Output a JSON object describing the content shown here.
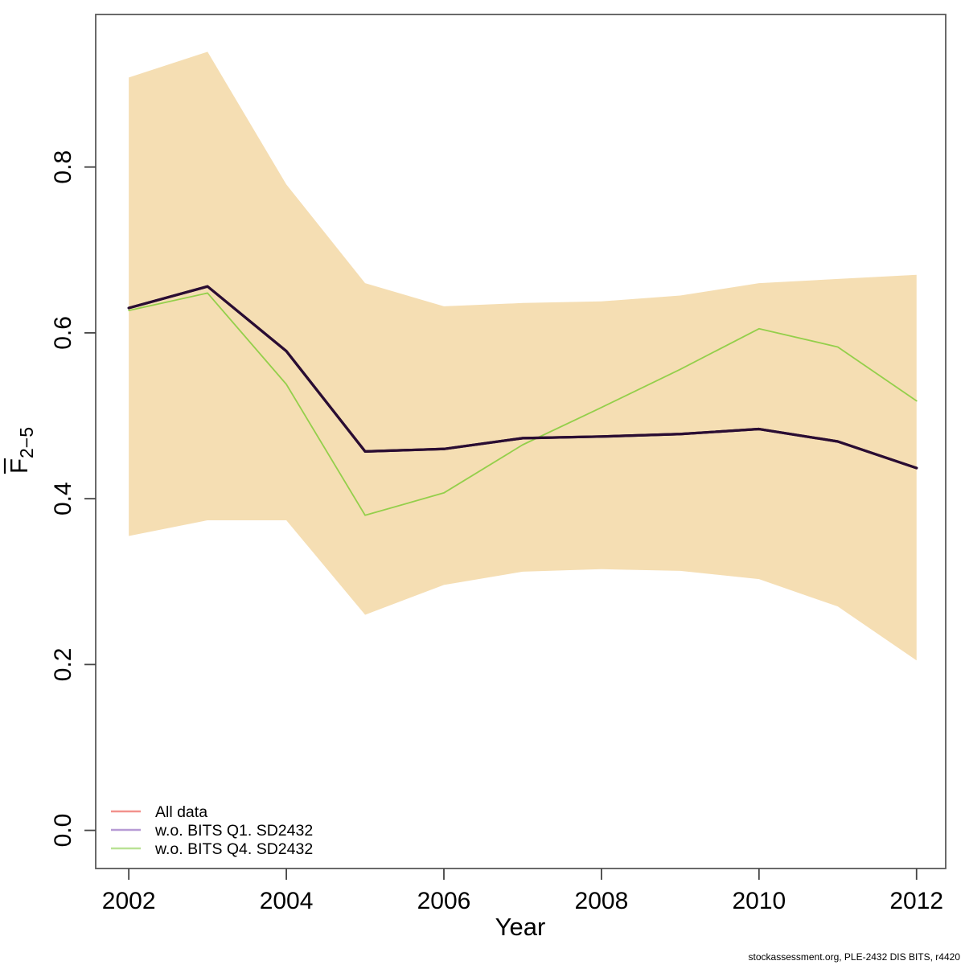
{
  "footer": "stockassessment.org, PLE-2432 DIS BITS, r4420",
  "frame_color": "#5a5a5a",
  "tick_color": "#444444",
  "chart_data": {
    "type": "line",
    "title": "",
    "xlabel": "Year",
    "ylabel": {
      "base": "F",
      "overbar": true,
      "subscript": "2−5"
    },
    "grid": false,
    "legend_position": "bottom-left",
    "xlim": [
      2001.58,
      2012.37
    ],
    "ylim": [
      -0.046,
      0.984
    ],
    "x_ticks": [
      2002,
      2004,
      2006,
      2008,
      2010,
      2012
    ],
    "x_tick_labels": [
      "2002",
      "2004",
      "2006",
      "2008",
      "2010",
      "2012"
    ],
    "y_ticks": [
      0.0,
      0.2,
      0.4,
      0.6,
      0.8
    ],
    "y_tick_labels": [
      "0.0",
      "0.2",
      "0.4",
      "0.6",
      "0.8"
    ],
    "years": [
      2002,
      2003,
      2004,
      2005,
      2006,
      2007,
      2008,
      2009,
      2010,
      2011,
      2012
    ],
    "band": {
      "label": "confidence-band",
      "fill_color": "#F5DEB3",
      "upper": [
        0.908,
        0.939,
        0.779,
        0.66,
        0.632,
        0.636,
        0.638,
        0.645,
        0.66,
        0.665,
        0.67
      ],
      "lower": [
        0.355,
        0.374,
        0.374,
        0.26,
        0.296,
        0.312,
        0.315,
        0.313,
        0.303,
        0.27,
        0.205
      ]
    },
    "series": [
      {
        "name": "All data",
        "legend_color": "#F2928D",
        "line_color": "#2A0D33",
        "line_width": 3.2,
        "values": [
          0.63,
          0.656,
          0.578,
          0.457,
          0.46,
          0.473,
          0.475,
          0.478,
          0.484,
          0.469,
          0.437
        ]
      },
      {
        "name": "w.o. BITS Q1. SD2432",
        "legend_color": "#B79BD5",
        "line_color": "#2A0D33",
        "line_width": 3.2,
        "values": [
          0.63,
          0.656,
          0.578,
          0.457,
          0.46,
          0.473,
          0.475,
          0.478,
          0.484,
          0.469,
          0.437
        ]
      },
      {
        "name": "w.o. BITS Q4. SD2432",
        "legend_color": "#B9E295",
        "line_color": "#94CF4B",
        "line_width": 1.8,
        "values": [
          0.627,
          0.648,
          0.538,
          0.38,
          0.407,
          0.465,
          0.51,
          0.556,
          0.605,
          0.583,
          0.518
        ]
      }
    ]
  }
}
